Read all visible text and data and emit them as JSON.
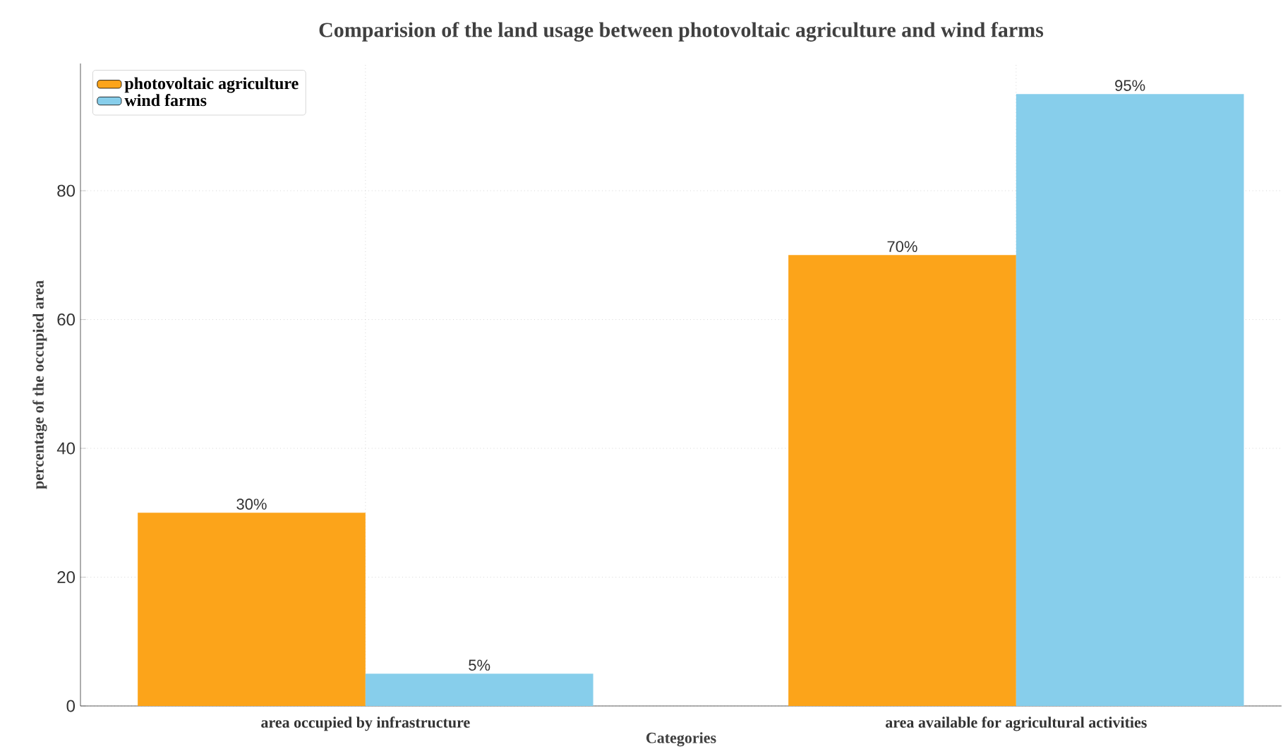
{
  "chart_data": {
    "type": "bar",
    "title": "Comparision of the land usage between photovoltaic agriculture and wind farms",
    "xlabel": "Categories",
    "ylabel": "percentage of the occupied area",
    "categories": [
      "area occupied by infrastructure",
      "area available for agricultural activities"
    ],
    "series": [
      {
        "name": "photovoltaic agriculture",
        "color": "#fca41a",
        "values": [
          30,
          70
        ],
        "value_labels": [
          "30%",
          "70%"
        ]
      },
      {
        "name": "wind farms",
        "color": "#87ceeb",
        "values": [
          5,
          95
        ],
        "value_labels": [
          "5%",
          "95%"
        ]
      }
    ],
    "ylim": [
      0,
      99.75
    ],
    "yticks": [
      0,
      20,
      40,
      60,
      80
    ],
    "grid": true,
    "legend": "top left"
  }
}
